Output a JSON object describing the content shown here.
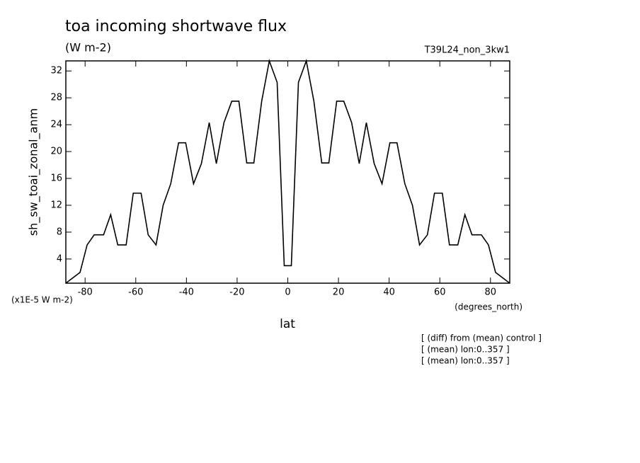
{
  "chart_data": {
    "type": "line",
    "title": "toa incoming shortwave flux",
    "subtitle": "(W m-2)",
    "run_label": "T39L24_non_3kw1",
    "y_label": "sh_sw_toai_zonal_anm",
    "y_scale_note": "(x1E-5 W m-2)",
    "x_label": "lat",
    "x_units": "(degrees_north)",
    "annotations": [
      "[ (diff) from (mean) control ]",
      "[ (mean) lon:0..357 ]",
      "[ (mean) lon:0..357 ]"
    ],
    "x": [
      -87.6,
      -82.0,
      -79.2,
      -76.4,
      -72.7,
      -69.9,
      -67.1,
      -63.8,
      -61.0,
      -57.9,
      -55.1,
      -52.0,
      -49.2,
      -46.2,
      -43.1,
      -40.3,
      -37.2,
      -34.1,
      -31.0,
      -28.2,
      -25.2,
      -22.1,
      -19.3,
      -16.2,
      -13.4,
      -10.3,
      -7.3,
      -4.2,
      -1.4,
      1.4,
      4.2,
      7.3,
      10.3,
      13.4,
      16.2,
      19.3,
      22.1,
      25.2,
      28.2,
      31.0,
      34.1,
      37.2,
      40.3,
      43.1,
      46.2,
      49.2,
      52.0,
      55.1,
      57.9,
      61.0,
      63.8,
      67.1,
      69.9,
      72.7,
      76.4,
      79.2,
      82.0,
      87.6
    ],
    "series": [
      {
        "name": "sh_sw_toai_zonal_anm",
        "color": "#000000",
        "values": [
          0.4,
          2.0,
          6.1,
          7.6,
          7.6,
          10.6,
          6.1,
          6.1,
          13.8,
          13.8,
          7.6,
          6.1,
          12.0,
          15.2,
          21.3,
          21.3,
          15.2,
          18.2,
          24.3,
          18.2,
          24.3,
          27.5,
          27.5,
          18.3,
          18.3,
          27.5,
          33.5,
          30.3,
          3.0,
          3.0,
          30.3,
          33.5,
          27.5,
          18.3,
          18.3,
          27.5,
          27.5,
          24.3,
          18.2,
          24.3,
          18.2,
          15.2,
          21.3,
          21.3,
          15.2,
          12.0,
          6.1,
          7.6,
          13.8,
          13.8,
          6.1,
          6.1,
          10.6,
          7.6,
          7.6,
          6.1,
          2.0,
          0.4
        ]
      }
    ],
    "xlim": [
      -87.6,
      87.6
    ],
    "ylim": [
      0.4,
      33.5
    ],
    "xticks": [
      -80,
      -60,
      -40,
      -20,
      0,
      20,
      40,
      60,
      80
    ],
    "yticks": [
      4,
      8,
      12,
      16,
      20,
      24,
      28,
      32
    ],
    "grid": false
  }
}
